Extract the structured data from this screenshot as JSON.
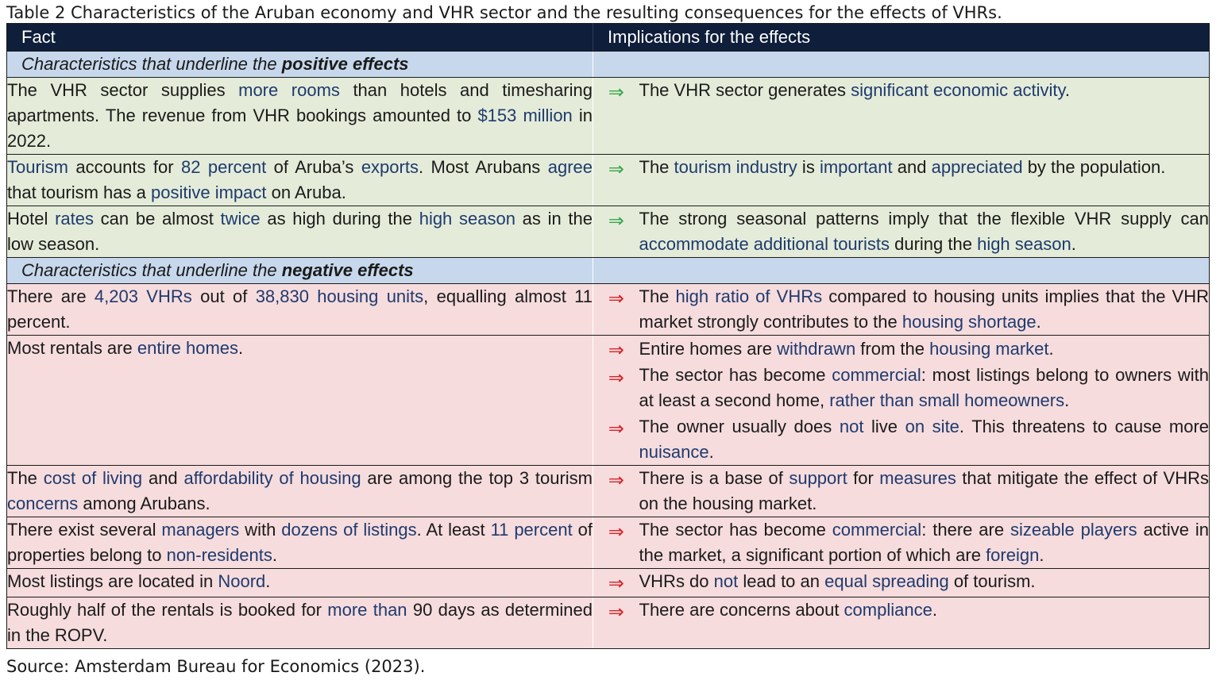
{
  "caption": "Table 2 Characteristics of the Aruban economy and VHR sector and the resulting consequences for the effects of VHRs.",
  "source": "Source: Amsterdam Bureau for Economics (2023).",
  "colors": {
    "header_bg": "#0f1e3a",
    "section_bg": "#c7d8ec",
    "positive_bg": "#e4ecd9",
    "negative_bg": "#f6dcdd",
    "positive_arrow": "#3aa64c",
    "negative_arrow": "#d6242c",
    "highlight": "#1f3a6e"
  },
  "headers": {
    "fact": "Fact",
    "implications": "Implications for the effects"
  },
  "arrow_glyph": "⇒",
  "sections": {
    "positive": {
      "prefix": "Characteristics that underline the ",
      "emph": "positive effects"
    },
    "negative": {
      "prefix": "Characteristics that underline the ",
      "emph": "negative effects"
    }
  },
  "rows": {
    "p1": {
      "fact": [
        "The VHR sector supplies ",
        "more rooms",
        " than hotels and timesharing apartments. The revenue from VHR bookings amounted to ",
        "$153 million",
        " in 2022."
      ],
      "impl": [
        [
          "The VHR sector generates ",
          "significant economic activity",
          "."
        ]
      ]
    },
    "p2": {
      "fact": [
        "Tourism",
        " accounts for ",
        "82 percent",
        " of Aruba’s ",
        "exports",
        ". Most Arubans ",
        "agree",
        " that tourism has a ",
        "positive impact",
        " on Aruba."
      ],
      "impl": [
        [
          "The ",
          "tourism industry",
          " is ",
          "important",
          " and ",
          "appreciated",
          " by the popula­tion."
        ]
      ]
    },
    "p3": {
      "fact": [
        "Hotel ",
        "rates",
        " can be almost ",
        "twice",
        " as high during the ",
        "high season",
        " as in the low season."
      ],
      "impl": [
        [
          "The strong seasonal patterns imply that the flexible VHR supply can ",
          "accommodate additional tourists",
          " during the ",
          "high season",
          "."
        ]
      ]
    },
    "n1": {
      "fact": [
        "There are ",
        "4,203 VHRs",
        " out of ",
        "38,830 housing units",
        ", equalling almost 11 percent."
      ],
      "impl": [
        [
          "The ",
          "high ratio of VHRs",
          " compared to housing units implies that the VHR market strongly contributes to the ",
          "housing shortage",
          "."
        ]
      ]
    },
    "n2": {
      "fact": [
        "Most rentals are ",
        "entire homes",
        "."
      ],
      "impl": [
        [
          "Entire homes are ",
          "withdrawn",
          " from the ",
          "housing market",
          "."
        ],
        [
          "The sector has become ",
          "commercial",
          ": most listings belong to own­ers with at least a second home, ",
          "rather than small homeowners",
          "."
        ],
        [
          "The owner usually does ",
          "not",
          " live ",
          "on site",
          ". This threatens to cause more ",
          "nuisance",
          "."
        ]
      ]
    },
    "n3": {
      "fact": [
        "The ",
        "cost of living",
        " and ",
        "affordability of housing",
        " are among the top 3 tourism ",
        "concerns",
        " among Arubans."
      ],
      "impl": [
        [
          "There is a base of ",
          "support",
          " for ",
          "measures",
          " that mitigate the effect of VHRs on the housing market."
        ]
      ]
    },
    "n4": {
      "fact": [
        "There exist several ",
        "managers",
        " with ",
        "dozens of listings",
        ". At least ",
        "11 per­cent",
        " of properties belong to ",
        "non-residents",
        "."
      ],
      "impl": [
        [
          "The sector has become ",
          "commercial",
          ": there are ",
          "sizeable players",
          " ac­tive in the market, a significant portion of which are ",
          "foreign",
          "."
        ]
      ]
    },
    "n5": {
      "fact": [
        "Most listings are located in ",
        "Noord",
        "."
      ],
      "impl": [
        [
          "VHRs do ",
          "not",
          " lead to an ",
          "equal spreading",
          " of tourism."
        ]
      ]
    },
    "n6": {
      "fact": [
        "Roughly half of the rentals is booked for ",
        "more than",
        " 90 days as de­termined in the ROPV."
      ],
      "impl": [
        [
          "There are concerns about ",
          "compliance",
          "."
        ]
      ]
    }
  }
}
